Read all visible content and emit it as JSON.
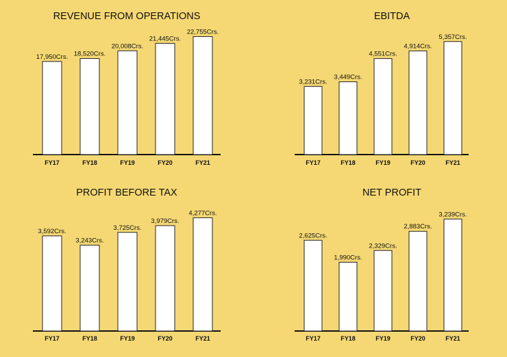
{
  "colors": {
    "background": "#f5d874",
    "bar_fill": "#ffffff",
    "bar_stroke": "#222222",
    "axis": "#111111"
  },
  "chart_data": [
    {
      "type": "bar",
      "title": "REVENUE FROM OPERATIONS",
      "categories": [
        "FY17",
        "FY18",
        "FY19",
        "FY20",
        "FY21"
      ],
      "values": [
        17950,
        18520,
        20008,
        21445,
        22755
      ],
      "value_labels": [
        "17,950Crs.",
        "18,520Crs.",
        "20,008Crs.",
        "21,445Crs.",
        "22,755Crs."
      ],
      "ylim": [
        0,
        24000
      ]
    },
    {
      "type": "bar",
      "title": "EBITDA",
      "categories": [
        "FY17",
        "FY18",
        "FY19",
        "FY20",
        "FY21"
      ],
      "values": [
        3231,
        3449,
        4551,
        4914,
        5357
      ],
      "value_labels": [
        "3,231Crs.",
        "3,449Crs.",
        "4,551Crs.",
        "4,914Crs.",
        "5,357Crs."
      ],
      "ylim": [
        0,
        5900
      ]
    },
    {
      "type": "bar",
      "title": "PROFIT BEFORE TAX",
      "categories": [
        "FY17",
        "FY18",
        "FY19",
        "FY20",
        "FY21"
      ],
      "values": [
        3592,
        3243,
        3725,
        3979,
        4277
      ],
      "value_labels": [
        "3,592Crs.",
        "3,243Crs.",
        "3,725Crs.",
        "3,979Crs.",
        "4,277Crs."
      ],
      "ylim": [
        0,
        4700
      ]
    },
    {
      "type": "bar",
      "title": "NET PROFIT",
      "categories": [
        "FY17",
        "FY18",
        "FY19",
        "FY20",
        "FY21"
      ],
      "values": [
        2625,
        1990,
        2329,
        2883,
        3239
      ],
      "value_labels": [
        "2,625Crs.",
        "1,990Crs.",
        "2,329Crs.",
        "2,883Crs.",
        "3,239Crs."
      ],
      "ylim": [
        0,
        3600
      ]
    }
  ]
}
